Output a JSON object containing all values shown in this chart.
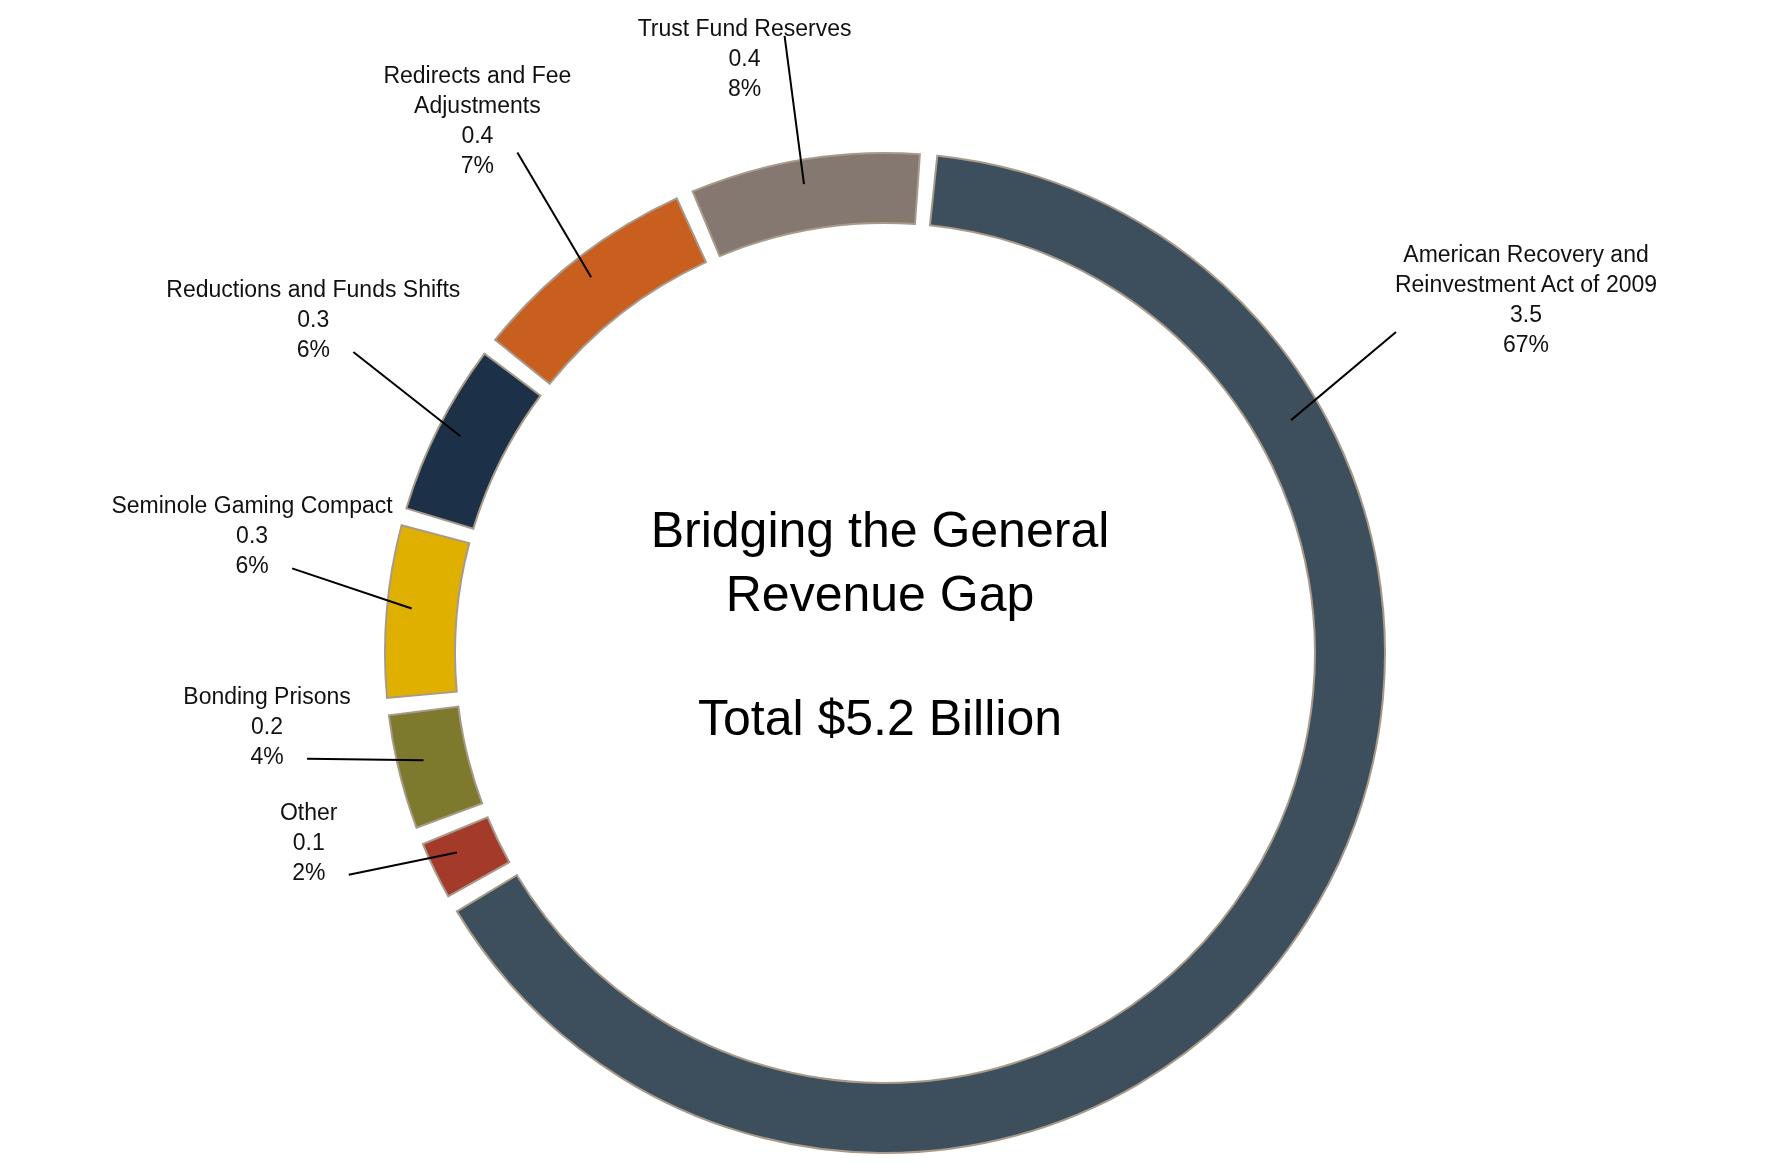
{
  "chart_data": {
    "type": "donut",
    "title": "Bridging the General Revenue Gap",
    "annotations": [
      "Total $5.2 Billion"
    ],
    "categories": [
      "American Recovery and Reinvestment Act of 2009",
      "Other",
      "Bonding Prisons",
      "Seminole Gaming Compact",
      "Reductions and Funds Shifts",
      "Redirects and Fee Adjustments",
      "Trust Fund Reserves"
    ],
    "values": [
      3.5,
      0.1,
      0.2,
      0.3,
      0.3,
      0.4,
      0.4
    ],
    "value_labels": [
      "3.5\n67%",
      "0.1\n2%",
      "0.2\n4%",
      "0.3\n6%",
      "0.3\n6%",
      "0.4\n7%",
      "0.4\n8%"
    ],
    "colors": [
      "#3d4f5c",
      "#a33a2a",
      "#7d7a2e",
      "#e0b000",
      "#1c3047",
      "#c85f1e",
      "#857870"
    ],
    "legend": false
  }
}
